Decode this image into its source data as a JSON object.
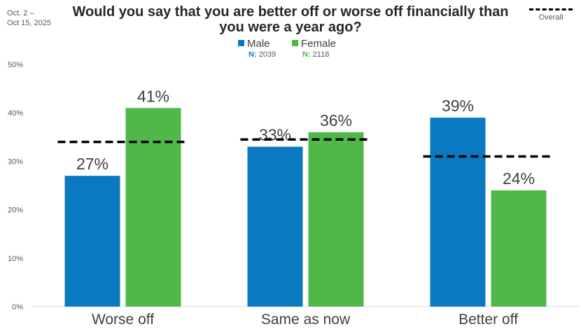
{
  "date_range": {
    "line1": "Oct. 2 –",
    "line2": "Oct 15, 2025"
  },
  "overall_legend": {
    "label": "Overall"
  },
  "legend": {
    "male": {
      "label": "Male",
      "n_label": "N:",
      "n_value": "2039",
      "color": "#0A79C1"
    },
    "female": {
      "label": "Female",
      "n_label": "N:",
      "n_value": "2118",
      "color": "#50B848"
    }
  },
  "chart_data": {
    "type": "bar",
    "title": "Would you say that you are better off or worse off financially than you were a year ago?",
    "categories": [
      "Worse off",
      "Same as now",
      "Better off"
    ],
    "series": [
      {
        "name": "Male",
        "values": [
          27,
          33,
          39
        ],
        "labels": [
          "27%",
          "33%",
          "39%"
        ],
        "color": "#0A79C1"
      },
      {
        "name": "Female",
        "values": [
          41,
          36,
          24
        ],
        "labels": [
          "41%",
          "36%",
          "24%"
        ],
        "color": "#50B848"
      }
    ],
    "overall": {
      "name": "Overall",
      "values": [
        34,
        34.5,
        31
      ]
    },
    "ylim": [
      0,
      50
    ],
    "yticks": [
      0,
      10,
      20,
      30,
      40,
      50
    ],
    "ytick_labels": [
      "0%",
      "10%",
      "20%",
      "30%",
      "40%",
      "50%"
    ],
    "grid": false,
    "legend_position": "top"
  }
}
